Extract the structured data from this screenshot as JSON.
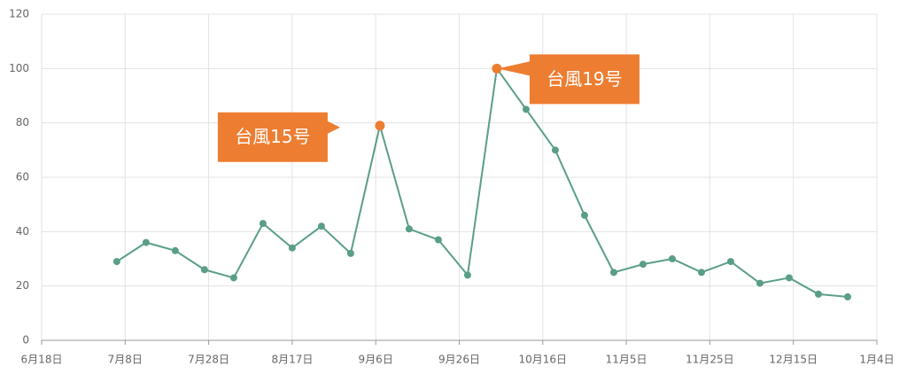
{
  "chart_data": {
    "type": "line",
    "x": [
      "7月6日",
      "7月13日",
      "7月20日",
      "7月27日",
      "8月3日",
      "8月10日",
      "8月17日",
      "8月24日",
      "8月31日",
      "9月7日",
      "9月14日",
      "9月21日",
      "9月28日",
      "10月5日",
      "10月12日",
      "10月19日",
      "10月26日",
      "11月2日",
      "11月9日",
      "11月16日",
      "11月23日",
      "11月30日",
      "12月7日",
      "12月14日",
      "12月21日",
      "12月28日"
    ],
    "series": [
      {
        "color": "#5a9e87",
        "values": [
          29,
          36,
          33,
          26,
          23,
          43,
          34,
          42,
          32,
          79,
          41,
          37,
          24,
          100,
          85,
          70,
          46,
          25,
          28,
          30,
          25,
          29,
          21,
          23,
          17,
          16
        ]
      }
    ],
    "xlim": [
      "6月18日",
      "1月4日"
    ],
    "xticks": [
      "6月18日",
      "7月8日",
      "7月28日",
      "8月17日",
      "9月6日",
      "9月26日",
      "10月16日",
      "11月5日",
      "11月25日",
      "12月15日",
      "1月4日"
    ],
    "ylim": [
      0,
      120
    ],
    "yticks": [
      0,
      20,
      40,
      60,
      80,
      100,
      120
    ],
    "grid": true,
    "annotations": [
      {
        "text": "台風15号",
        "x": "9月7日"
      },
      {
        "text": "台風19号",
        "x": "10月5日"
      }
    ],
    "annotation_color": "#ed7d31"
  }
}
